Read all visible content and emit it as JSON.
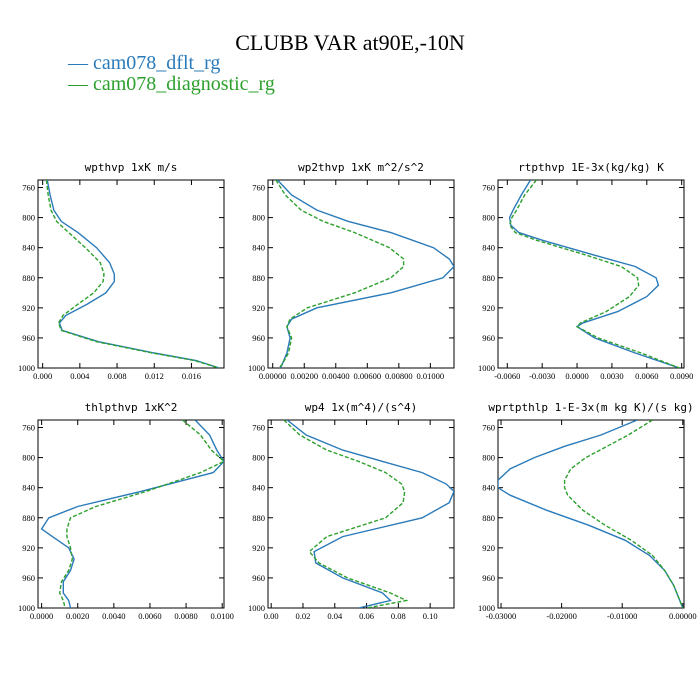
{
  "title": "CLUBB VAR at90E,-10N",
  "legend": [
    {
      "label": "cam078_dflt_rg",
      "color": "#2b7bba"
    },
    {
      "label": "cam078_diagnostic_rg",
      "color": "#2ca02c"
    }
  ],
  "chart_data": [
    {
      "type": "line",
      "title": "wpthvp  1xK m/s",
      "ylim": [
        1000,
        750
      ],
      "xlim": [
        -0.0005,
        0.0195
      ],
      "yticks": [
        "760",
        "800",
        "840",
        "880",
        "920",
        "960",
        "1000"
      ],
      "xticks": [
        "0.000",
        "0.004",
        "0.008",
        "0.012",
        "0.016"
      ],
      "series": [
        {
          "name": "cam078_dflt_rg",
          "y": [
            750,
            770,
            790,
            805,
            820,
            840,
            860,
            875,
            885,
            900,
            915,
            930,
            940,
            950,
            965,
            980,
            990,
            1000
          ],
          "x": [
            0.0005,
            0.0008,
            0.0012,
            0.002,
            0.0038,
            0.0058,
            0.0072,
            0.0077,
            0.0077,
            0.0068,
            0.0048,
            0.0025,
            0.0018,
            0.0021,
            0.006,
            0.012,
            0.0165,
            0.019
          ]
        },
        {
          "name": "cam078_diagnostic_rg",
          "y": [
            750,
            770,
            790,
            805,
            820,
            840,
            860,
            875,
            885,
            900,
            915,
            930,
            940,
            950,
            965,
            980,
            990,
            1000
          ],
          "x": [
            0.0004,
            0.0006,
            0.0009,
            0.0015,
            0.0028,
            0.0046,
            0.0062,
            0.0066,
            0.0065,
            0.0055,
            0.0038,
            0.0022,
            0.0017,
            0.002,
            0.0058,
            0.0118,
            0.0163,
            0.019
          ]
        }
      ]
    },
    {
      "type": "line",
      "title": "wp2thvp  1xK m^2/s^2",
      "ylim": [
        1000,
        750
      ],
      "xlim": [
        -0.0003,
        0.0115
      ],
      "yticks": [
        "760",
        "800",
        "840",
        "880",
        "920",
        "960",
        "1000"
      ],
      "xticks": [
        "0.00000",
        "0.00200",
        "0.00400",
        "0.00600",
        "0.00800",
        "0.01000"
      ],
      "series": [
        {
          "name": "cam078_dflt_rg",
          "y": [
            750,
            770,
            790,
            805,
            820,
            840,
            855,
            865,
            880,
            900,
            920,
            935,
            945,
            960,
            980,
            995,
            1000
          ],
          "x": [
            0.0003,
            0.0012,
            0.0028,
            0.0048,
            0.0075,
            0.0102,
            0.0112,
            0.0115,
            0.0108,
            0.0075,
            0.0028,
            0.0012,
            0.0009,
            0.0011,
            0.0009,
            0.0006,
            0.0005
          ]
        },
        {
          "name": "cam078_diagnostic_rg",
          "y": [
            750,
            770,
            790,
            805,
            820,
            840,
            855,
            865,
            880,
            900,
            920,
            935,
            945,
            960,
            980,
            995,
            1000
          ],
          "x": [
            0.0002,
            0.0008,
            0.0018,
            0.0032,
            0.0052,
            0.0074,
            0.0083,
            0.0083,
            0.0075,
            0.0052,
            0.0022,
            0.0011,
            0.0009,
            0.0012,
            0.001,
            0.0006,
            0.0004
          ]
        }
      ]
    },
    {
      "type": "line",
      "title": "rtpthvp  1E-3x(kg/kg) K",
      "ylim": [
        1000,
        750
      ],
      "xlim": [
        -0.0068,
        0.0092
      ],
      "yticks": [
        "760",
        "800",
        "840",
        "880",
        "920",
        "960",
        "1000"
      ],
      "xticks": [
        "-0.0060",
        "-0.0030",
        "0.0000",
        "0.0030",
        "0.0060",
        "0.0090"
      ],
      "series": [
        {
          "name": "cam078_dflt_rg",
          "y": [
            750,
            770,
            790,
            800,
            810,
            820,
            830,
            850,
            865,
            880,
            890,
            905,
            925,
            940,
            945,
            960,
            980,
            1000
          ],
          "x": [
            -0.004,
            -0.0048,
            -0.0055,
            -0.0058,
            -0.0057,
            -0.005,
            -0.003,
            0.0015,
            0.005,
            0.0068,
            0.007,
            0.006,
            0.0035,
            0.0005,
            0.0,
            0.0015,
            0.005,
            0.0088
          ]
        },
        {
          "name": "cam078_diagnostic_rg",
          "y": [
            750,
            770,
            790,
            800,
            810,
            820,
            830,
            850,
            865,
            880,
            890,
            905,
            925,
            940,
            945,
            960,
            980,
            1000
          ],
          "x": [
            -0.0035,
            -0.0045,
            -0.0052,
            -0.0056,
            -0.0058,
            -0.0053,
            -0.0035,
            0.0008,
            0.0038,
            0.0052,
            0.0053,
            0.0045,
            0.0025,
            0.0003,
            0.0,
            0.0018,
            0.0055,
            0.0088
          ]
        }
      ]
    },
    {
      "type": "line",
      "title": "thlpthvp  1xK^2",
      "ylim": [
        1000,
        750
      ],
      "xlim": [
        -0.0002,
        0.0101
      ],
      "yticks": [
        "760",
        "800",
        "840",
        "880",
        "920",
        "960",
        "1000"
      ],
      "xticks": [
        "0.0000",
        "0.0020",
        "0.0040",
        "0.0060",
        "0.0080",
        "0.0100"
      ],
      "series": [
        {
          "name": "cam078_dflt_rg",
          "y": [
            750,
            770,
            790,
            805,
            820,
            845,
            865,
            880,
            895,
            905,
            920,
            935,
            950,
            965,
            980,
            990,
            1000
          ],
          "x": [
            0.0085,
            0.0093,
            0.0097,
            0.0101,
            0.0095,
            0.0055,
            0.002,
            0.0004,
            0.0,
            0.0006,
            0.0015,
            0.0018,
            0.0016,
            0.0012,
            0.0012,
            0.0015,
            0.0016
          ]
        },
        {
          "name": "cam078_diagnostic_rg",
          "y": [
            750,
            770,
            790,
            805,
            820,
            845,
            865,
            880,
            895,
            905,
            920,
            935,
            950,
            965,
            980,
            990,
            1000
          ],
          "x": [
            0.0078,
            0.0088,
            0.0094,
            0.0101,
            0.0088,
            0.0058,
            0.003,
            0.0016,
            0.0014,
            0.0014,
            0.0016,
            0.0017,
            0.0015,
            0.0011,
            0.001,
            0.0012,
            0.0013
          ]
        }
      ]
    },
    {
      "type": "line",
      "title": "wp4  1x(m^4)/(s^4)",
      "ylim": [
        1000,
        750
      ],
      "xlim": [
        -0.002,
        0.115
      ],
      "yticks": [
        "760",
        "800",
        "840",
        "880",
        "920",
        "960",
        "1000"
      ],
      "xticks": [
        "0.00",
        "0.02",
        "0.04",
        "0.06",
        "0.08",
        "0.10"
      ],
      "series": [
        {
          "name": "cam078_dflt_rg",
          "y": [
            750,
            770,
            790,
            805,
            820,
            835,
            845,
            860,
            880,
            905,
            925,
            940,
            960,
            980,
            990,
            1000
          ],
          "x": [
            0.01,
            0.022,
            0.045,
            0.07,
            0.095,
            0.11,
            0.115,
            0.112,
            0.095,
            0.045,
            0.027,
            0.028,
            0.045,
            0.07,
            0.075,
            0.055
          ]
        },
        {
          "name": "cam078_diagnostic_rg",
          "y": [
            750,
            770,
            790,
            805,
            820,
            835,
            845,
            860,
            880,
            905,
            925,
            940,
            960,
            980,
            990,
            1000
          ],
          "x": [
            0.008,
            0.018,
            0.035,
            0.055,
            0.072,
            0.082,
            0.084,
            0.083,
            0.072,
            0.035,
            0.024,
            0.03,
            0.048,
            0.075,
            0.085,
            0.06
          ]
        }
      ]
    },
    {
      "type": "line",
      "title": "wprtpthlp  1-E-3x(m kg K)/(s kg)",
      "ylim": [
        1000,
        750
      ],
      "xlim": [
        -0.0305,
        0.0002
      ],
      "yticks": [
        "760",
        "800",
        "840",
        "880",
        "920",
        "960",
        "1000"
      ],
      "xticks": [
        "-0.03000",
        "-0.02000",
        "-0.01000",
        "0.00000"
      ],
      "series": [
        {
          "name": "cam078_dflt_rg",
          "y": [
            750,
            770,
            785,
            800,
            815,
            830,
            840,
            850,
            870,
            890,
            910,
            930,
            950,
            970,
            990,
            1000
          ],
          "x": [
            -0.0075,
            -0.0135,
            -0.0195,
            -0.0245,
            -0.0285,
            -0.0305,
            -0.0305,
            -0.0285,
            -0.0225,
            -0.0155,
            -0.0095,
            -0.0055,
            -0.003,
            -0.0015,
            -0.0005,
            0.0
          ]
        },
        {
          "name": "cam078_diagnostic_rg",
          "y": [
            750,
            770,
            785,
            800,
            815,
            830,
            840,
            850,
            870,
            890,
            910,
            930,
            950,
            970,
            990,
            1000
          ],
          "x": [
            -0.005,
            -0.009,
            -0.0125,
            -0.016,
            -0.0185,
            -0.0195,
            -0.0195,
            -0.019,
            -0.0165,
            -0.0128,
            -0.0085,
            -0.005,
            -0.003,
            -0.0015,
            -0.0005,
            0.0
          ]
        }
      ]
    }
  ]
}
